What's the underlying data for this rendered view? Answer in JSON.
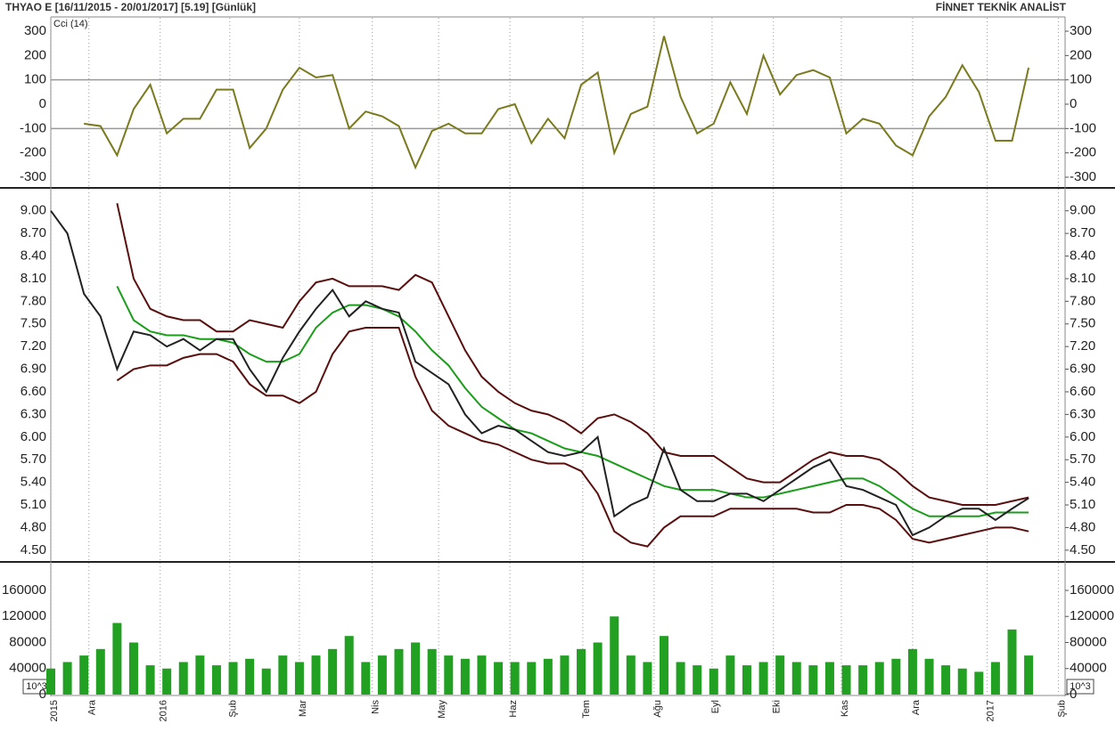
{
  "header": {
    "title": "THYAO E  [16/11/2015 - 20/01/2017]  [5.19]  [Günlük]",
    "brand": "FİNNET TEKNİK ANALİST"
  },
  "chart_data": [
    {
      "type": "line",
      "label": "Cci (14)",
      "ylim": [
        -333,
        355
      ],
      "yticks": [
        300,
        200,
        100,
        0,
        -100,
        -200,
        -300
      ],
      "reflines": [
        100,
        -100
      ],
      "series": [
        {
          "color": "#7a7a1e",
          "values": [
            null,
            null,
            -80,
            -90,
            -210,
            -20,
            80,
            -120,
            -60,
            -60,
            60,
            60,
            -180,
            -100,
            60,
            150,
            110,
            120,
            -100,
            -30,
            -50,
            -90,
            -260,
            -110,
            -80,
            -120,
            -120,
            -20,
            0,
            -160,
            -60,
            -140,
            80,
            130,
            -200,
            -40,
            -10,
            280,
            30,
            -120,
            -80,
            90,
            -40,
            200,
            40,
            120,
            140,
            110,
            -120,
            -60,
            -80,
            -170,
            -210,
            -50,
            30,
            160,
            50,
            -150,
            -150,
            150
          ]
        }
      ]
    },
    {
      "type": "line",
      "ylim": [
        4.38,
        9.28
      ],
      "yticks": [
        {
          "value": 9.0,
          "label": "9.00"
        },
        {
          "value": 8.7,
          "label": "8.70"
        },
        {
          "value": 8.4,
          "label": "8.40"
        },
        {
          "value": 8.1,
          "label": "8.10"
        },
        {
          "value": 7.8,
          "label": "7.80"
        },
        {
          "value": 7.5,
          "label": "7.50"
        },
        {
          "value": 7.2,
          "label": "7.20"
        },
        {
          "value": 6.9,
          "label": "6.90"
        },
        {
          "value": 6.6,
          "label": "6.60"
        },
        {
          "value": 6.3,
          "label": "6.30"
        },
        {
          "value": 6.0,
          "label": "6.00"
        },
        {
          "value": 5.7,
          "label": "5.70"
        },
        {
          "value": 5.4,
          "label": "5.40"
        },
        {
          "value": 5.1,
          "label": "5.10"
        },
        {
          "value": 4.8,
          "label": "4.80"
        },
        {
          "value": 4.5,
          "label": "4.50"
        }
      ],
      "x": [
        0,
        1,
        2,
        3,
        4,
        5,
        6,
        7,
        8,
        9,
        10,
        11,
        12,
        13,
        14,
        15,
        16,
        17,
        18,
        19,
        20,
        21,
        22,
        23,
        24,
        25,
        26,
        27,
        28,
        29,
        30,
        31,
        32,
        33,
        34,
        35,
        36,
        37,
        38,
        39,
        40,
        41,
        42,
        43,
        44,
        45,
        46,
        47,
        48,
        49,
        50,
        51,
        52,
        53,
        54,
        55,
        56,
        57,
        58,
        59
      ],
      "series": [
        {
          "color": "#5a0f0f",
          "values": [
            null,
            null,
            null,
            null,
            9.1,
            8.1,
            7.7,
            7.6,
            7.55,
            7.55,
            7.4,
            7.4,
            7.55,
            7.5,
            7.45,
            7.8,
            8.05,
            8.1,
            8.0,
            8.0,
            8.0,
            7.95,
            8.15,
            8.05,
            7.6,
            7.15,
            6.8,
            6.6,
            6.45,
            6.35,
            6.3,
            6.2,
            6.05,
            6.25,
            6.3,
            6.2,
            6.05,
            5.8,
            5.75,
            5.75,
            5.75,
            5.6,
            5.45,
            5.4,
            5.4,
            5.55,
            5.7,
            5.8,
            5.75,
            5.75,
            5.7,
            5.55,
            5.35,
            5.2,
            5.15,
            5.1,
            5.1,
            5.1,
            5.15,
            5.2
          ]
        },
        {
          "color": "#5a0f0f",
          "values": [
            null,
            null,
            null,
            null,
            6.75,
            6.9,
            6.95,
            6.95,
            7.05,
            7.1,
            7.1,
            7.0,
            6.7,
            6.55,
            6.55,
            6.45,
            6.6,
            7.1,
            7.4,
            7.45,
            7.45,
            7.45,
            6.8,
            6.35,
            6.15,
            6.05,
            5.95,
            5.9,
            5.8,
            5.7,
            5.65,
            5.65,
            5.55,
            5.25,
            4.75,
            4.6,
            4.55,
            4.8,
            4.95,
            4.95,
            4.95,
            5.05,
            5.05,
            5.05,
            5.05,
            5.05,
            5.0,
            5.0,
            5.1,
            5.1,
            5.05,
            4.9,
            4.65,
            4.6,
            4.65,
            4.7,
            4.75,
            4.8,
            4.8,
            4.75
          ]
        },
        {
          "color": "#1a9e1a",
          "values": [
            null,
            null,
            null,
            null,
            8.0,
            7.55,
            7.4,
            7.35,
            7.35,
            7.3,
            7.3,
            7.25,
            7.1,
            7.0,
            7.0,
            7.1,
            7.45,
            7.65,
            7.75,
            7.75,
            7.7,
            7.6,
            7.4,
            7.15,
            6.95,
            6.65,
            6.4,
            6.25,
            6.1,
            6.05,
            5.95,
            5.85,
            5.8,
            5.75,
            5.65,
            5.55,
            5.45,
            5.35,
            5.3,
            5.3,
            5.3,
            5.25,
            5.2,
            5.2,
            5.25,
            5.3,
            5.35,
            5.4,
            5.45,
            5.45,
            5.35,
            5.2,
            5.05,
            4.95,
            4.95,
            4.95,
            4.95,
            5.0,
            5.0,
            5.0
          ]
        },
        {
          "color": "#222222",
          "values": [
            9.0,
            8.7,
            7.9,
            7.6,
            6.9,
            7.4,
            7.35,
            7.2,
            7.3,
            7.15,
            7.3,
            7.3,
            6.9,
            6.6,
            7.05,
            7.4,
            7.7,
            7.95,
            7.6,
            7.8,
            7.7,
            7.65,
            7.0,
            6.85,
            6.7,
            6.3,
            6.05,
            6.15,
            6.1,
            5.95,
            5.8,
            5.75,
            5.8,
            6.0,
            4.95,
            5.1,
            5.2,
            5.85,
            5.3,
            5.15,
            5.15,
            5.25,
            5.25,
            5.15,
            5.3,
            5.45,
            5.6,
            5.7,
            5.35,
            5.3,
            5.2,
            5.1,
            4.7,
            4.8,
            4.95,
            5.05,
            5.05,
            4.9,
            5.05,
            5.19
          ]
        }
      ]
    },
    {
      "type": "bar",
      "unit_label": "10^3",
      "color": "#22a022",
      "ylim": [
        0,
        201000
      ],
      "yticks": [
        160000,
        120000,
        80000,
        40000,
        0
      ],
      "xlim": [
        0,
        61.2
      ],
      "xticks": [
        {
          "value": 0,
          "label": "2015"
        },
        {
          "value": 2.3,
          "label": "Ara"
        },
        {
          "value": 6.6,
          "label": "2016"
        },
        {
          "value": 10.8,
          "label": "Şub"
        },
        {
          "value": 15.0,
          "label": "Mar"
        },
        {
          "value": 19.4,
          "label": "Nis"
        },
        {
          "value": 23.4,
          "label": "May"
        },
        {
          "value": 27.7,
          "label": "Haz"
        },
        {
          "value": 32.1,
          "label": "Tem"
        },
        {
          "value": 36.4,
          "label": "Ağu"
        },
        {
          "value": 39.9,
          "label": "Eyl"
        },
        {
          "value": 43.6,
          "label": "Eki"
        },
        {
          "value": 47.7,
          "label": "Kas"
        },
        {
          "value": 52.0,
          "label": "Ara"
        },
        {
          "value": 56.5,
          "label": "2017"
        },
        {
          "value": 60.8,
          "label": "Şub"
        }
      ],
      "values": [
        40000,
        50000,
        60000,
        70000,
        110000,
        80000,
        45000,
        40000,
        50000,
        60000,
        45000,
        50000,
        55000,
        40000,
        60000,
        50000,
        60000,
        70000,
        90000,
        50000,
        60000,
        70000,
        80000,
        70000,
        60000,
        55000,
        60000,
        50000,
        50000,
        50000,
        55000,
        60000,
        70000,
        80000,
        120000,
        60000,
        50000,
        90000,
        50000,
        45000,
        40000,
        60000,
        45000,
        50000,
        60000,
        50000,
        45000,
        50000,
        45000,
        45000,
        50000,
        55000,
        70000,
        55000,
        45000,
        40000,
        35000,
        50000,
        100000,
        60000
      ]
    }
  ]
}
